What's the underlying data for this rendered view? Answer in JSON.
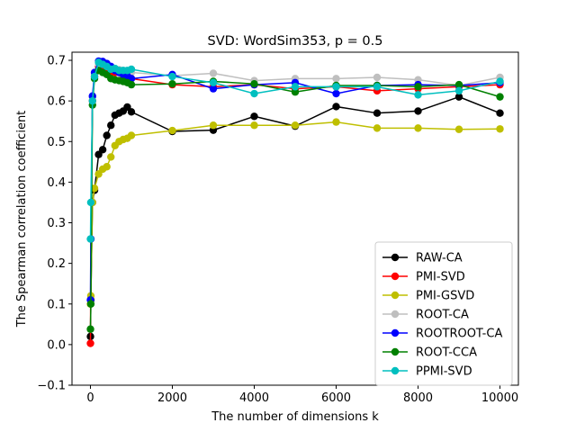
{
  "chart_data": {
    "type": "line",
    "title": "SVD: WordSim353, p = 0.5",
    "xlabel": "The number of dimensions k",
    "ylabel": "The Spearman correlation coefficient",
    "xlim": [
      -450,
      10450
    ],
    "ylim": [
      -0.1,
      0.72
    ],
    "xticks": [
      0,
      2000,
      4000,
      6000,
      8000,
      10000
    ],
    "xtick_labels": [
      "0",
      "2000",
      "4000",
      "6000",
      "8000",
      "10000"
    ],
    "yticks": [
      -0.1,
      0.0,
      0.1,
      0.2,
      0.3,
      0.4,
      0.5,
      0.6,
      0.7
    ],
    "ytick_labels": [
      "−0.1",
      "0.0",
      "0.1",
      "0.2",
      "0.3",
      "0.4",
      "0.5",
      "0.6",
      "0.7"
    ],
    "legend_position": "lower-right",
    "series": [
      {
        "name": "RAW-CA",
        "color": "#000000",
        "x": [
          1,
          10,
          50,
          100,
          200,
          300,
          400,
          500,
          600,
          700,
          800,
          900,
          1000,
          2000,
          3000,
          4000,
          5000,
          6000,
          7000,
          8000,
          9000,
          10000
        ],
        "y": [
          0.02,
          0.11,
          0.35,
          0.38,
          0.468,
          0.48,
          0.515,
          0.54,
          0.565,
          0.57,
          0.575,
          0.585,
          0.573,
          0.525,
          0.528,
          0.562,
          0.538,
          0.586,
          0.57,
          0.575,
          0.61,
          0.57
        ]
      },
      {
        "name": "PMI-SVD",
        "color": "#ff0000",
        "x": [
          1,
          10,
          50,
          100,
          200,
          300,
          400,
          500,
          600,
          700,
          800,
          900,
          1000,
          2000,
          3000,
          4000,
          5000,
          6000,
          7000,
          8000,
          9000,
          10000
        ],
        "y": [
          0.003,
          0.26,
          0.6,
          0.66,
          0.685,
          0.685,
          0.68,
          0.672,
          0.67,
          0.67,
          0.665,
          0.66,
          0.655,
          0.64,
          0.635,
          0.64,
          0.63,
          0.635,
          0.625,
          0.63,
          0.635,
          0.64
        ]
      },
      {
        "name": "PMI-GSVD",
        "color": "#bfbf00",
        "x": [
          1,
          10,
          50,
          100,
          200,
          300,
          400,
          500,
          600,
          700,
          800,
          900,
          1000,
          2000,
          3000,
          4000,
          5000,
          6000,
          7000,
          8000,
          9000,
          10000
        ],
        "y": [
          0.1,
          0.12,
          0.35,
          0.385,
          0.42,
          0.432,
          0.438,
          0.462,
          0.49,
          0.5,
          0.505,
          0.508,
          0.515,
          0.527,
          0.54,
          0.54,
          0.54,
          0.548,
          0.533,
          0.533,
          0.53,
          0.531
        ]
      },
      {
        "name": "ROOT-CA",
        "color": "#bfbfbf",
        "x": [
          1,
          10,
          50,
          100,
          200,
          300,
          400,
          500,
          600,
          700,
          800,
          900,
          1000,
          2000,
          3000,
          4000,
          5000,
          6000,
          7000,
          8000,
          9000,
          10000
        ],
        "y": [
          0.11,
          0.26,
          0.61,
          0.665,
          0.69,
          0.695,
          0.685,
          0.68,
          0.678,
          0.677,
          0.675,
          0.672,
          0.67,
          0.662,
          0.668,
          0.65,
          0.655,
          0.655,
          0.658,
          0.652,
          0.638,
          0.658
        ]
      },
      {
        "name": "ROOTROOT-CA",
        "color": "#0000ff",
        "x": [
          1,
          10,
          50,
          100,
          200,
          300,
          400,
          500,
          600,
          700,
          800,
          900,
          1000,
          2000,
          3000,
          4000,
          5000,
          6000,
          7000,
          8000,
          9000,
          10000
        ],
        "y": [
          0.11,
          0.26,
          0.612,
          0.67,
          0.698,
          0.697,
          0.692,
          0.685,
          0.675,
          0.67,
          0.665,
          0.662,
          0.655,
          0.665,
          0.63,
          0.64,
          0.645,
          0.618,
          0.638,
          0.64,
          0.638,
          0.645
        ]
      },
      {
        "name": "ROOT-CCA",
        "color": "#008000",
        "x": [
          1,
          10,
          50,
          100,
          200,
          300,
          400,
          500,
          600,
          700,
          800,
          900,
          1000,
          2000,
          3000,
          4000,
          5000,
          6000,
          7000,
          8000,
          9000,
          10000
        ],
        "y": [
          0.038,
          0.1,
          0.59,
          0.655,
          0.675,
          0.67,
          0.665,
          0.655,
          0.652,
          0.65,
          0.648,
          0.645,
          0.64,
          0.642,
          0.648,
          0.642,
          0.622,
          0.638,
          0.638,
          0.635,
          0.64,
          0.61
        ]
      },
      {
        "name": "PPMI-SVD",
        "color": "#00bfbf",
        "x": [
          1,
          10,
          50,
          100,
          200,
          300,
          400,
          500,
          600,
          700,
          800,
          900,
          1000,
          2000,
          3000,
          4000,
          5000,
          6000,
          7000,
          8000,
          9000,
          10000
        ],
        "y": [
          0.26,
          0.35,
          0.6,
          0.66,
          0.695,
          0.69,
          0.685,
          0.678,
          0.68,
          0.675,
          0.675,
          0.675,
          0.678,
          0.66,
          0.645,
          0.618,
          0.635,
          0.635,
          0.635,
          0.615,
          0.625,
          0.648
        ]
      }
    ]
  }
}
